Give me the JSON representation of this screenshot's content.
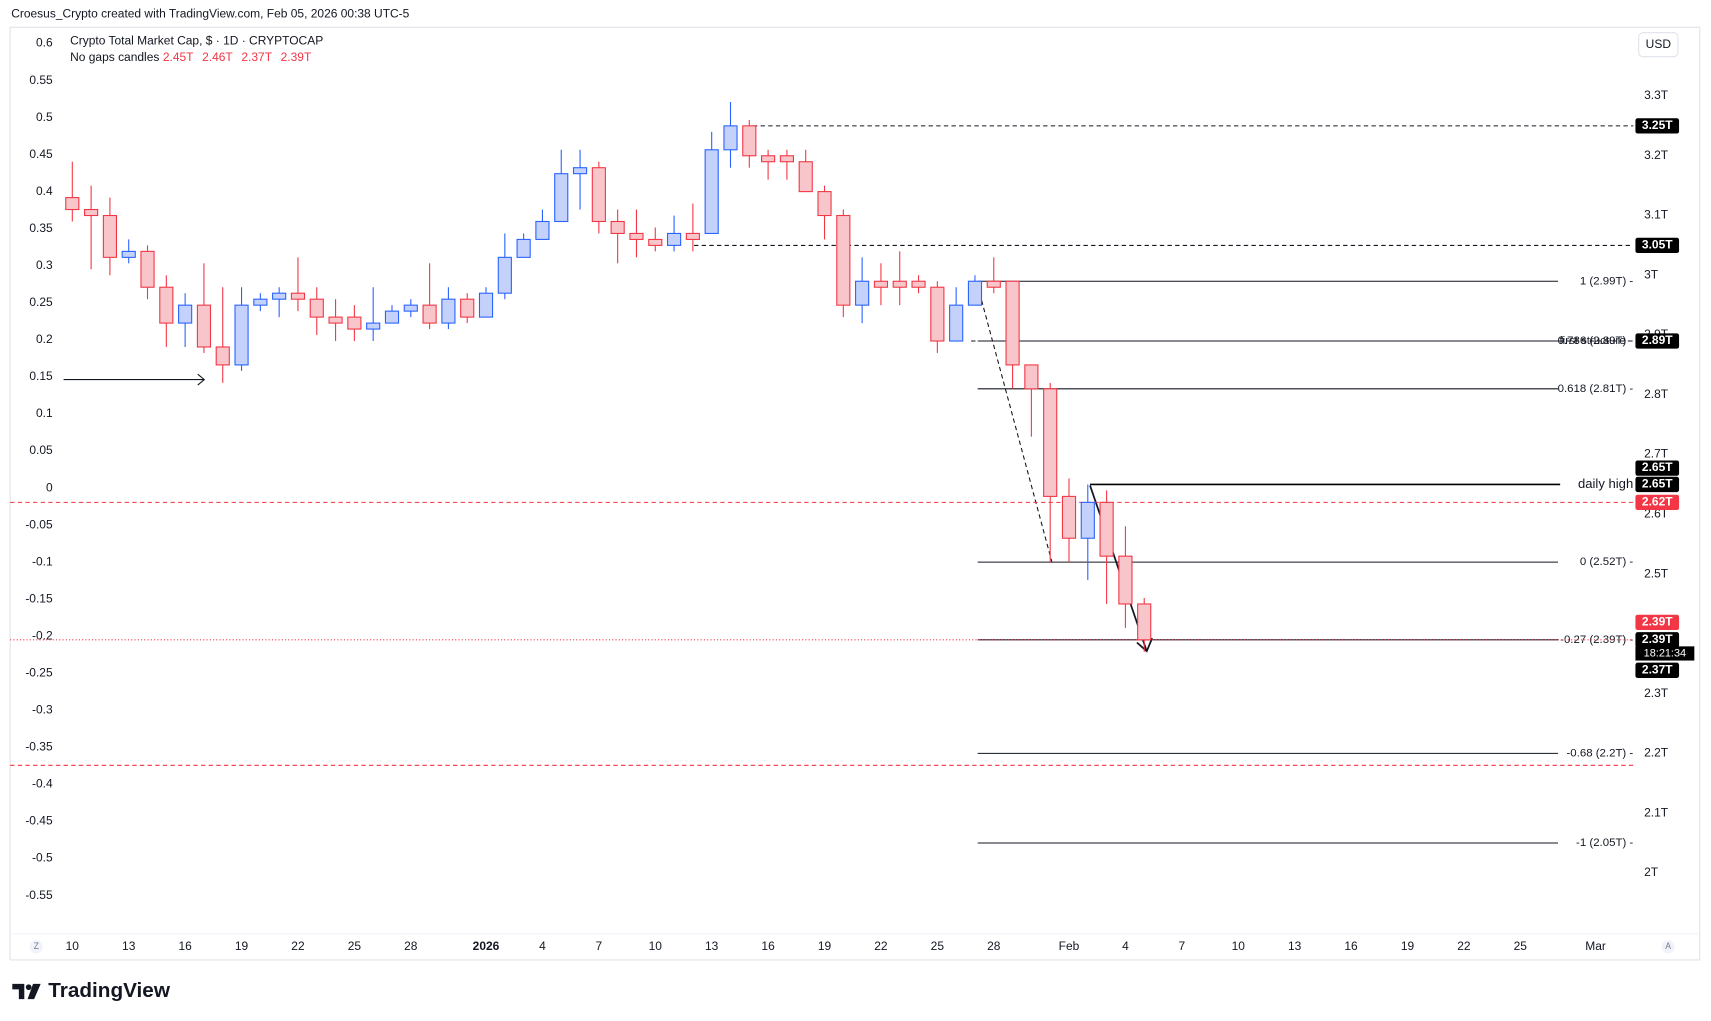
{
  "chart_data": {
    "type": "candlestick",
    "attribution": "Croesus_Crypto created with TradingView.com, Feb 05, 2026 00:38 UTC-5",
    "title": "Crypto Total Market Cap, $ · 1D · CRYPTOCAP",
    "subtitle": "No gaps candles",
    "ohlc_labels": [
      "2.45T",
      "2.46T",
      "2.37T",
      "2.39T"
    ],
    "currency": "USD",
    "axis_buttons": [
      "Z",
      "A"
    ],
    "brand": "TradingView",
    "countdown": "18:21:34",
    "up_color": "#2962ff",
    "up_fill": "#c4d2fb",
    "down_color": "#f23645",
    "down_fill": "#f8c6ca",
    "grid": false,
    "categories": [
      "10",
      null,
      null,
      "13",
      null,
      null,
      "16",
      null,
      null,
      "19",
      null,
      null,
      "22",
      null,
      null,
      "25",
      null,
      null,
      "28",
      null,
      null,
      null,
      "2026",
      null,
      null,
      "4",
      null,
      null,
      "7",
      null,
      null,
      "10",
      null,
      null,
      "13",
      null,
      null,
      "16",
      null,
      null,
      "19",
      null,
      null,
      "22",
      null,
      null,
      "25",
      null,
      null,
      "28",
      null,
      null,
      null,
      "Feb",
      null,
      null,
      "4",
      null,
      null,
      "7",
      null,
      null,
      "10",
      null,
      null,
      "13",
      null,
      null,
      "16",
      null,
      null,
      "19",
      null,
      null,
      "22",
      null,
      null,
      "25",
      null,
      null,
      null,
      "Mar",
      null
    ],
    "open": [
      3.13,
      3.11,
      3.1,
      3.03,
      3.04,
      2.98,
      2.92,
      2.95,
      2.88,
      2.85,
      2.95,
      2.96,
      2.97,
      2.96,
      2.93,
      2.93,
      2.91,
      2.92,
      2.94,
      2.95,
      2.92,
      2.96,
      2.93,
      2.97,
      3.03,
      3.06,
      3.09,
      3.17,
      3.18,
      3.09,
      3.07,
      3.06,
      3.05,
      3.07,
      3.07,
      3.21,
      3.25,
      3.2,
      3.2,
      3.19,
      3.14,
      3.1,
      2.95,
      2.99,
      2.99,
      2.99,
      2.98,
      2.89,
      2.95,
      2.99,
      2.99,
      2.85,
      2.81,
      2.63,
      2.56,
      2.62,
      2.53,
      2.45,
      null,
      null,
      null,
      null,
      null,
      null,
      null,
      null,
      null,
      null,
      null,
      null,
      null,
      null,
      null,
      null,
      null,
      null,
      null,
      null,
      null,
      null,
      null,
      null,
      null
    ],
    "high": [
      3.19,
      3.15,
      3.13,
      3.06,
      3.05,
      3.0,
      2.97,
      3.02,
      2.98,
      2.98,
      2.97,
      2.98,
      3.03,
      2.98,
      2.96,
      2.95,
      2.98,
      2.95,
      2.96,
      3.02,
      2.98,
      2.97,
      2.98,
      3.07,
      3.07,
      3.11,
      3.21,
      3.21,
      3.19,
      3.11,
      3.11,
      3.08,
      3.1,
      3.12,
      3.24,
      3.29,
      3.26,
      3.21,
      3.21,
      3.21,
      3.15,
      3.11,
      3.03,
      3.02,
      3.04,
      3.0,
      2.99,
      2.98,
      3.0,
      3.03,
      2.99,
      2.85,
      2.82,
      2.66,
      2.65,
      2.64,
      2.58,
      2.46,
      null,
      null,
      null,
      null,
      null,
      null,
      null,
      null,
      null,
      null,
      null,
      null,
      null,
      null,
      null,
      null,
      null,
      null,
      null,
      null,
      null,
      null,
      null,
      null,
      null
    ],
    "low": [
      3.09,
      3.01,
      3.0,
      3.02,
      2.96,
      2.88,
      2.88,
      2.87,
      2.82,
      2.84,
      2.94,
      2.93,
      2.94,
      2.9,
      2.89,
      2.89,
      2.89,
      2.92,
      2.93,
      2.91,
      2.91,
      2.92,
      2.93,
      2.96,
      3.03,
      3.06,
      3.09,
      3.11,
      3.07,
      3.02,
      3.03,
      3.04,
      3.04,
      3.04,
      3.07,
      3.18,
      3.18,
      3.16,
      3.16,
      3.14,
      3.06,
      2.93,
      2.92,
      2.95,
      2.95,
      2.97,
      2.87,
      2.89,
      2.95,
      2.97,
      2.81,
      2.73,
      2.52,
      2.52,
      2.49,
      2.45,
      2.41,
      2.37,
      null,
      null,
      null,
      null,
      null,
      null,
      null,
      null,
      null,
      null,
      null,
      null,
      null,
      null,
      null,
      null,
      null,
      null,
      null,
      null,
      null,
      null,
      null,
      null,
      null
    ],
    "close": [
      3.11,
      3.1,
      3.03,
      3.04,
      2.98,
      2.92,
      2.95,
      2.88,
      2.85,
      2.95,
      2.96,
      2.97,
      2.96,
      2.93,
      2.92,
      2.91,
      2.92,
      2.94,
      2.95,
      2.92,
      2.96,
      2.93,
      2.97,
      3.03,
      3.06,
      3.09,
      3.17,
      3.18,
      3.09,
      3.07,
      3.06,
      3.05,
      3.07,
      3.06,
      3.21,
      3.25,
      3.2,
      3.19,
      3.19,
      3.14,
      3.1,
      2.95,
      2.99,
      2.98,
      2.98,
      2.98,
      2.89,
      2.95,
      2.99,
      2.98,
      2.85,
      2.81,
      2.63,
      2.56,
      2.62,
      2.53,
      2.45,
      2.39,
      null,
      null,
      null,
      null,
      null,
      null,
      null,
      null,
      null,
      null,
      null,
      null,
      null,
      null,
      null,
      null,
      null,
      null,
      null,
      null,
      null,
      null,
      null,
      null,
      null
    ],
    "ylim": [
      1.9,
      3.415
    ],
    "yticks": [
      {
        "value": 3.3,
        "label": "3.3T"
      },
      {
        "value": 3.2,
        "label": "3.2T"
      },
      {
        "value": 3.1,
        "label": "3.1T"
      },
      {
        "value": 3,
        "label": "3T"
      },
      {
        "value": 2.9,
        "label": "2.9T"
      },
      {
        "value": 2.8,
        "label": "2.8T"
      },
      {
        "value": 2.7,
        "label": "2.7T"
      },
      {
        "value": 2.6,
        "label": "2.6T"
      },
      {
        "value": 2.5,
        "label": "2.5T"
      },
      {
        "value": 2.3,
        "label": "2.3T"
      },
      {
        "value": 2.2,
        "label": "2.2T"
      },
      {
        "value": 2.1,
        "label": "2.1T"
      },
      {
        "value": 2,
        "label": "2T"
      }
    ],
    "y2lim": [
      -0.6,
      0.622
    ],
    "y2ticks": [
      0.6,
      0.55,
      0.5,
      0.45,
      0.4,
      0.35,
      0.3,
      0.25,
      0.2,
      0.15,
      0.1,
      0.05,
      0,
      -0.05,
      -0.1,
      -0.15,
      -0.2,
      -0.25,
      -0.3,
      -0.35,
      -0.4,
      -0.45,
      -0.5,
      -0.55
    ],
    "levels": [
      {
        "value": 3.25,
        "line": "dashed",
        "color": "#131722"
      },
      {
        "value": 3.05,
        "line": "dashed",
        "color": "#131722"
      },
      {
        "value": 2.99,
        "label": "1 (2.99T) -",
        "line": "solid",
        "color": "#131722"
      },
      {
        "value": 2.89,
        "label": "0.786 (2.89T) -",
        "line": "solid",
        "color": "#131722"
      },
      {
        "value": 2.89,
        "label": "first structure",
        "line": "dashed",
        "color": "#131722"
      },
      {
        "value": 2.81,
        "label": "0.618 (2.81T) -",
        "line": "solid",
        "color": "#131722"
      },
      {
        "value": 2.65,
        "label": "daily high",
        "line": "solid",
        "color": "#000000"
      },
      {
        "value": 2.62,
        "line": "dashed",
        "color": "#f23645"
      },
      {
        "value": 2.52,
        "label": "0 (2.52T) -",
        "line": "solid",
        "color": "#131722"
      },
      {
        "value": 2.39,
        "label": "-0.27 (2.39T) -",
        "line": "solid",
        "color": "#131722"
      },
      {
        "value": 2.39,
        "line": "dotted",
        "color": "#f23645"
      },
      {
        "value": 2.2,
        "label": "-0.68 (2.2T) -",
        "line": "solid",
        "color": "#131722"
      },
      {
        "value": 2.18,
        "line": "dashed",
        "color": "#f23645"
      },
      {
        "value": 2.05,
        "label": "-1 (2.05T) -",
        "line": "solid",
        "color": "#131722"
      }
    ],
    "badges": [
      {
        "value": 3.25,
        "label": "3.25T",
        "color": "#000000"
      },
      {
        "value": 3.05,
        "label": "3.05T",
        "color": "#000000"
      },
      {
        "value": 2.89,
        "label": "2.89T",
        "color": "#000000"
      },
      {
        "value": 2.65,
        "label": "2.65T",
        "color": "#000000"
      },
      {
        "value": 2.65,
        "label": "2.65T",
        "color": "#000000"
      },
      {
        "value": 2.62,
        "label": "2.62T",
        "color": "#f23645"
      },
      {
        "value": 2.39,
        "label": "2.39T",
        "color": "#f23645"
      },
      {
        "value": 2.39,
        "label": "2.39T",
        "color": "#000000"
      },
      {
        "value": 2.37,
        "label": "2.37T",
        "color": "#000000"
      }
    ]
  }
}
